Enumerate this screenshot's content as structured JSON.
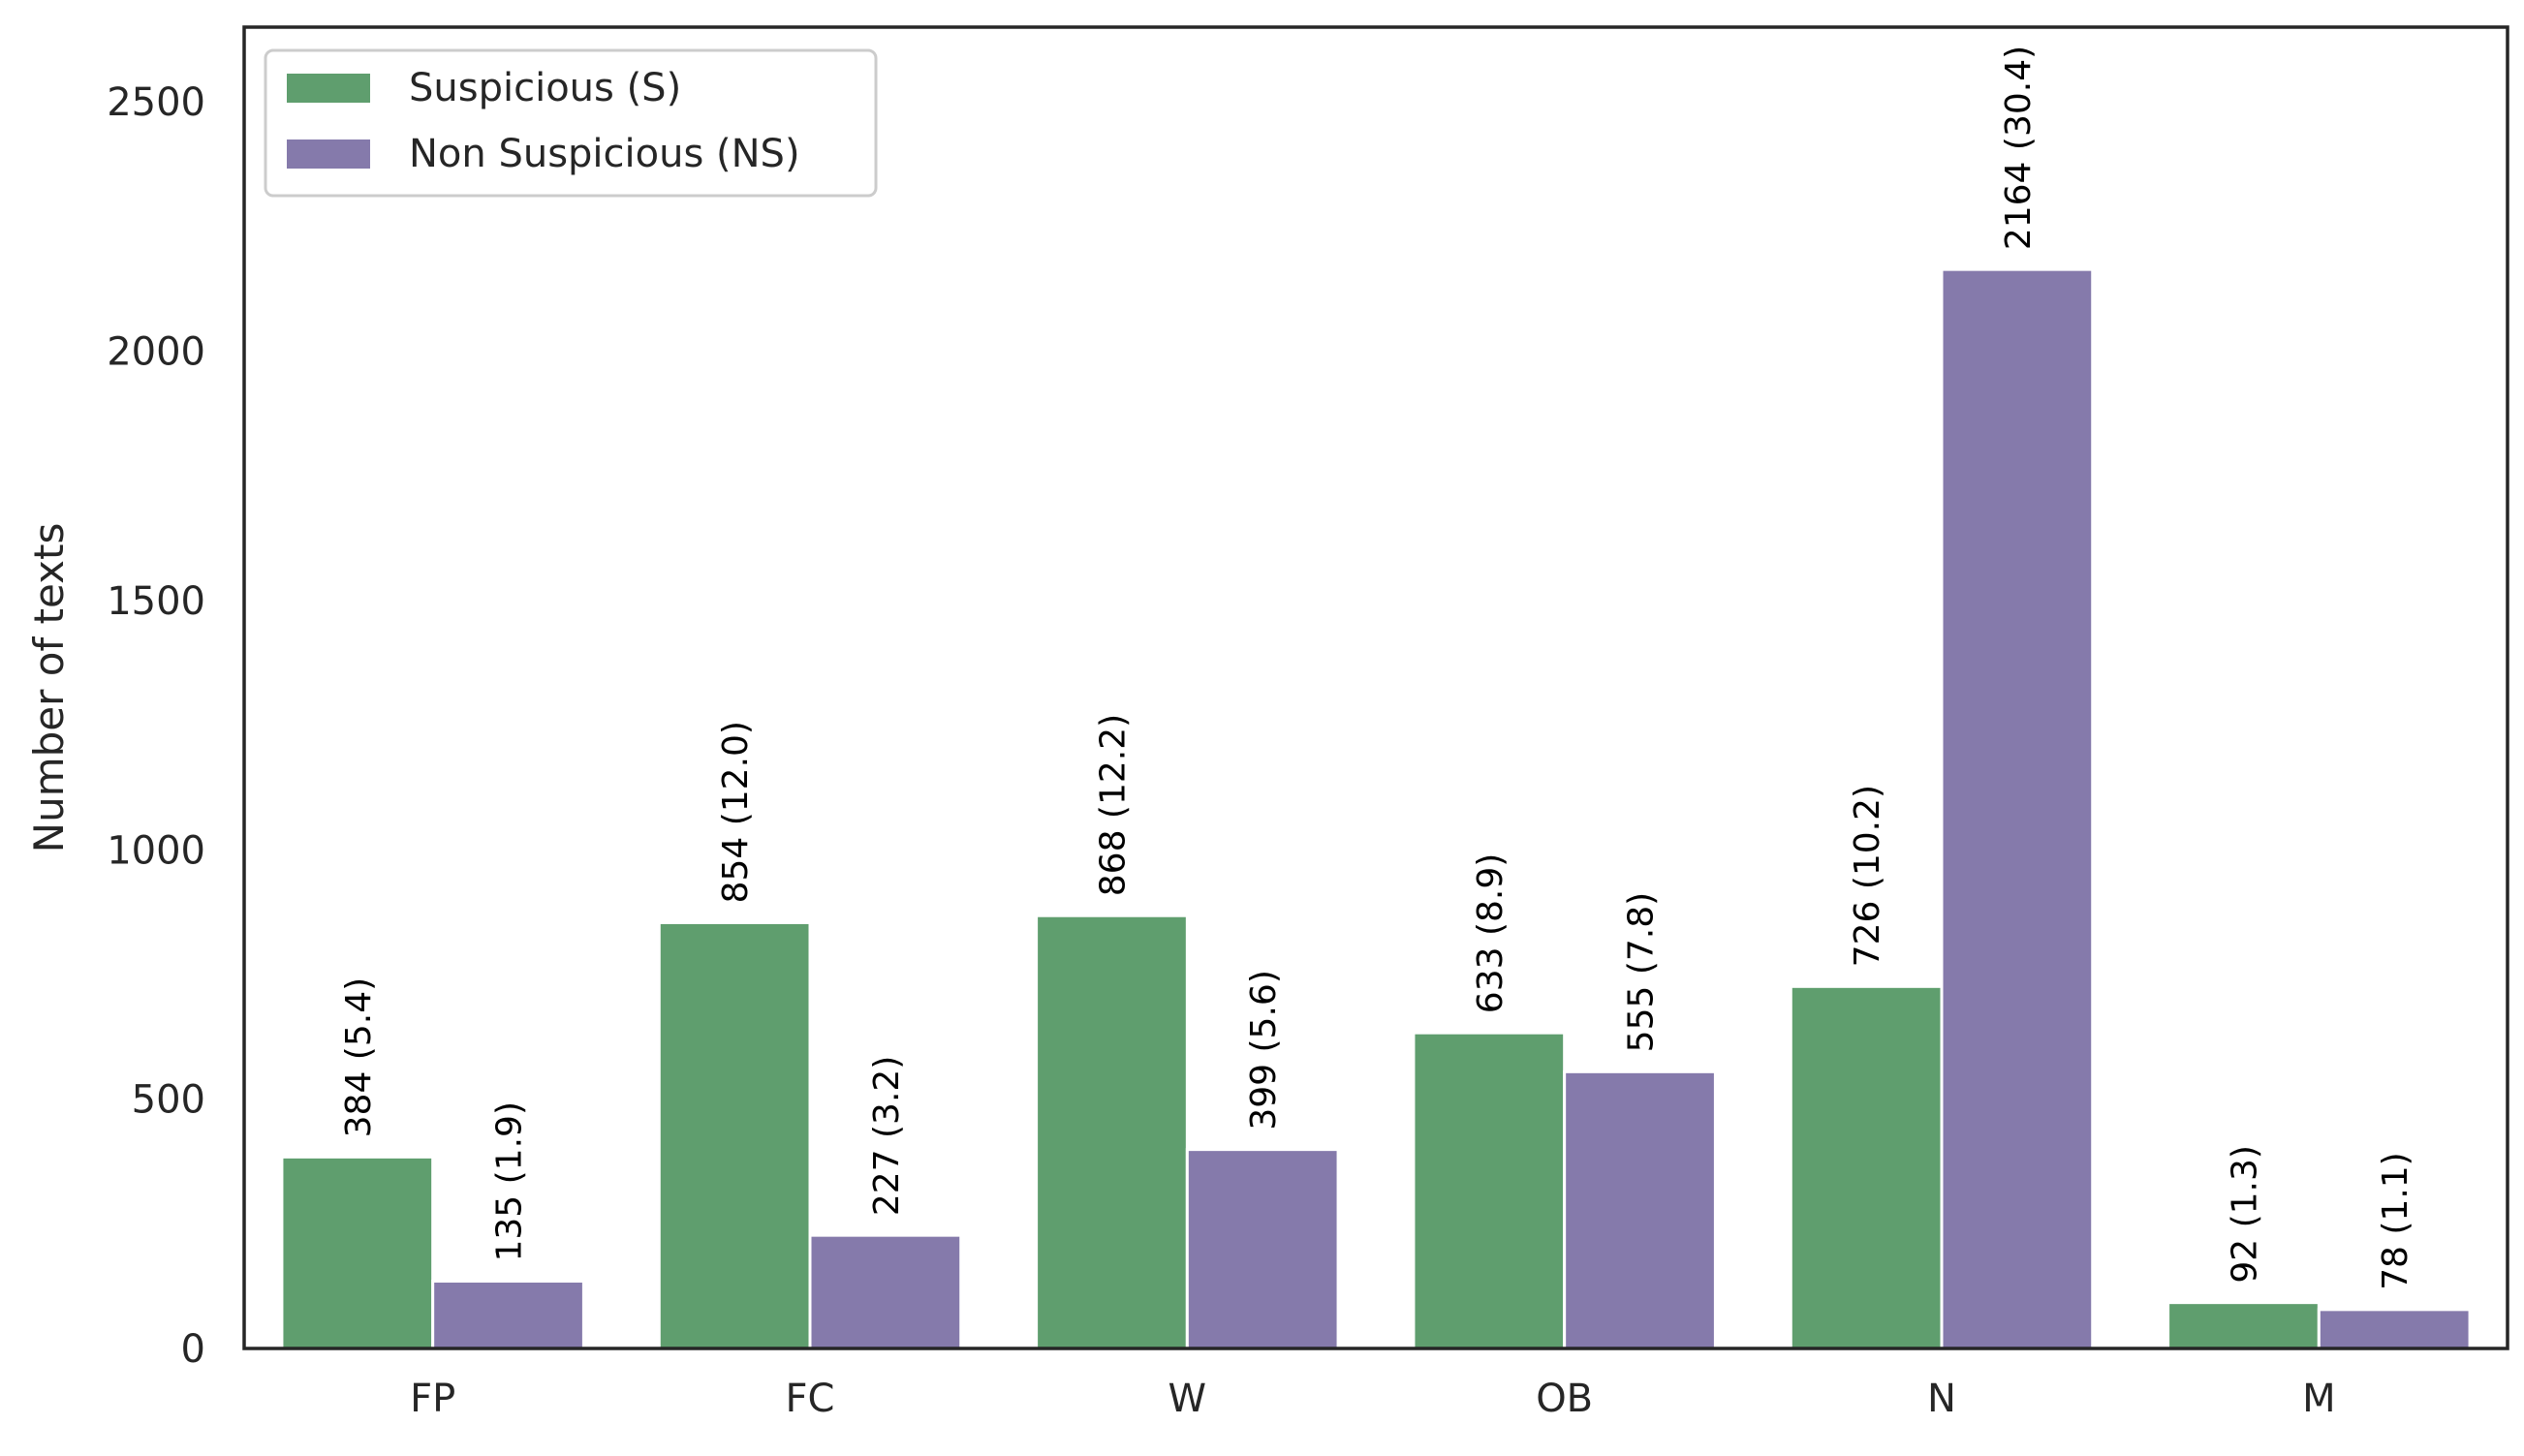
{
  "chart_data": {
    "type": "bar",
    "categories": [
      "FP",
      "FC",
      "W",
      "OB",
      "N",
      "M"
    ],
    "series": [
      {
        "name": "Suspicious (S)",
        "color": "#5f9e6e",
        "values": [
          384,
          854,
          868,
          633,
          726,
          92
        ],
        "labels": [
          "384 (5.4)",
          "854 (12.0)",
          "868 (12.2)",
          "633 (8.9)",
          "726 (10.2)",
          "92 (1.3)"
        ]
      },
      {
        "name": "Non Suspicious (NS)",
        "color": "#857aab",
        "values": [
          135,
          227,
          399,
          555,
          2164,
          78
        ],
        "labels": [
          "135 (1.9)",
          "227 (3.2)",
          "399 (5.6)",
          "555 (7.8)",
          "2164 (30.4)",
          "78 (1.1)"
        ]
      }
    ],
    "xlabel": "",
    "ylabel": "Number of texts",
    "ylim": [
      0,
      2650
    ],
    "yticks": [
      0,
      500,
      1000,
      1500,
      2000,
      2500
    ],
    "grid": false,
    "legend_position": "top-left"
  }
}
